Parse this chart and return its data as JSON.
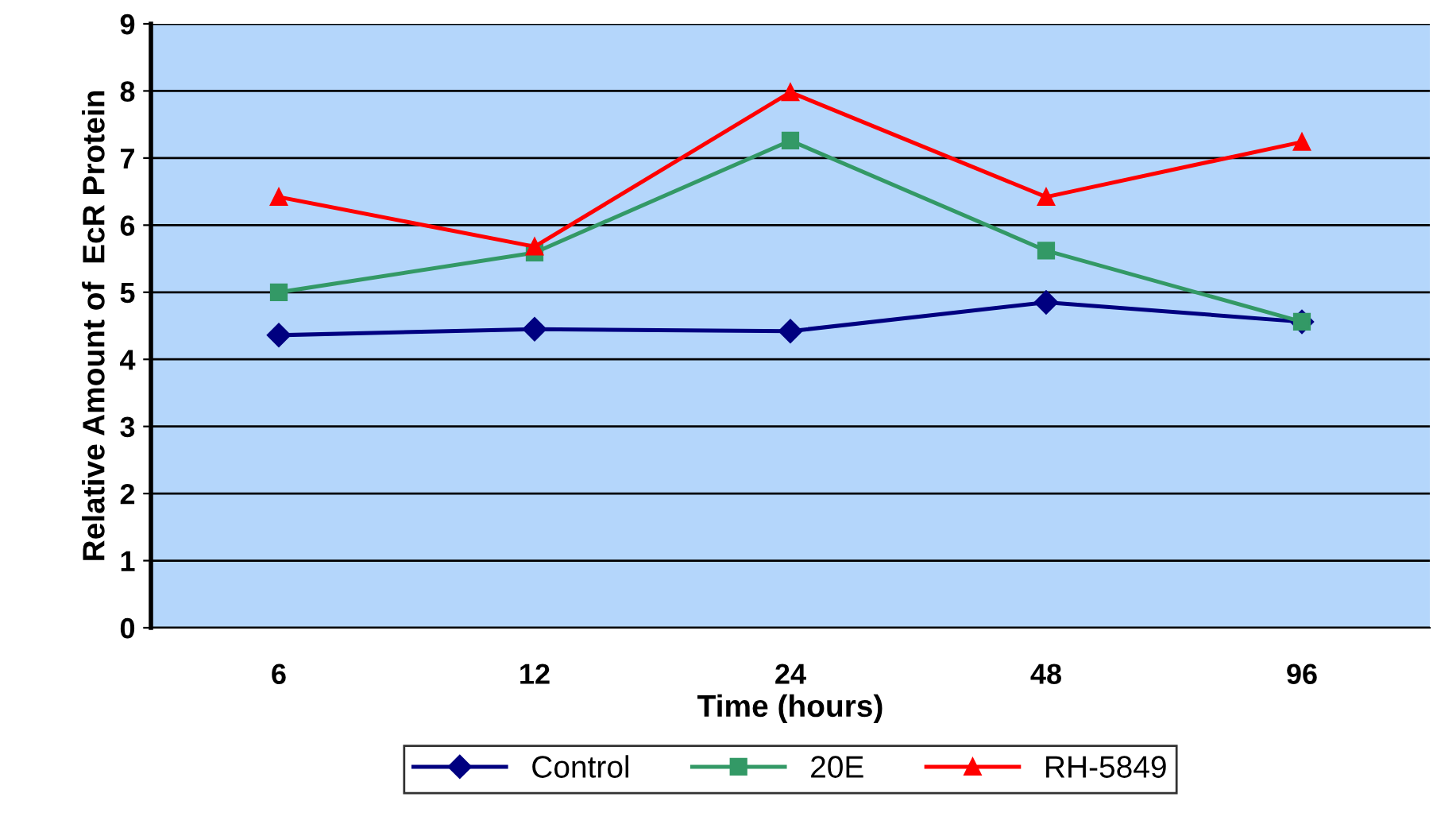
{
  "chart_data": {
    "type": "line",
    "xlabel": "Time (hours)",
    "ylabel": "Relative Amount of  EcR Protein",
    "categories": [
      "6",
      "12",
      "24",
      "48",
      "96"
    ],
    "series": [
      {
        "name": "Control",
        "color": "#000080",
        "marker": "diamond",
        "values": [
          4.36,
          4.45,
          4.42,
          4.85,
          4.56
        ]
      },
      {
        "name": "20E",
        "color": "#339966",
        "marker": "square",
        "values": [
          5.0,
          5.59,
          7.26,
          5.62,
          4.56
        ]
      },
      {
        "name": "RH-5849",
        "color": "#ff0000",
        "marker": "triangle",
        "values": [
          6.42,
          5.68,
          7.98,
          6.42,
          7.24
        ]
      }
    ],
    "ylim": [
      0,
      9
    ],
    "yticks": [
      0,
      1,
      2,
      3,
      4,
      5,
      6,
      7,
      8,
      9
    ],
    "grid": "y",
    "legend": "bottom"
  }
}
